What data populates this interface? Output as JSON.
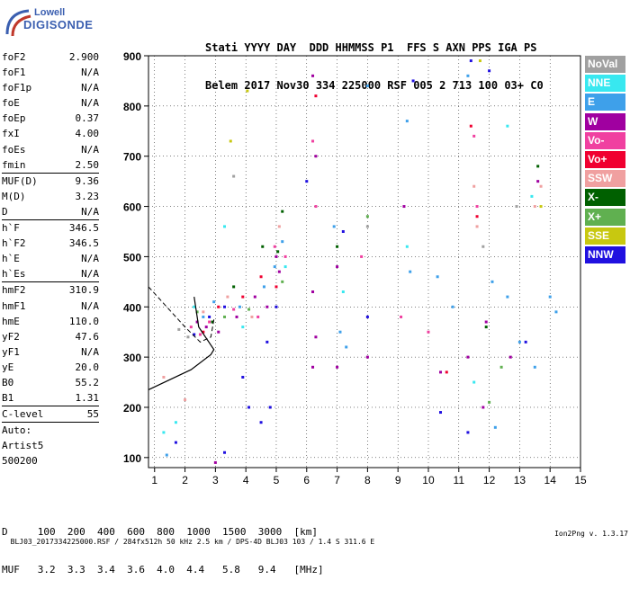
{
  "logo": {
    "line1": "Lowell",
    "line2": "DIGISONDE"
  },
  "header": {
    "line1": "Stati YYYY DAY  DDD HHMMSS P1  FFS S AXN PPS IGA PS",
    "line2": "Belem 2017 Nov30 334 225000 RSF 005 2 713 100 03+ C0"
  },
  "params": [
    {
      "label": "foF2",
      "value": "2.900",
      "sep": false
    },
    {
      "label": "foF1",
      "value": "N/A",
      "sep": false
    },
    {
      "label": "foF1p",
      "value": "N/A",
      "sep": false
    },
    {
      "label": "foE",
      "value": "N/A",
      "sep": false
    },
    {
      "label": "foEp",
      "value": "0.37",
      "sep": false
    },
    {
      "label": "fxI",
      "value": "4.00",
      "sep": false
    },
    {
      "label": "foEs",
      "value": "N/A",
      "sep": false
    },
    {
      "label": "fmin",
      "value": "2.50",
      "sep": true
    },
    {
      "label": "MUF(D)",
      "value": "9.36",
      "sep": false
    },
    {
      "label": "M(D)",
      "value": "3.23",
      "sep": false
    },
    {
      "label": "D",
      "value": "N/A",
      "sep": true
    },
    {
      "label": "h`F",
      "value": "346.5",
      "sep": false
    },
    {
      "label": "h`F2",
      "value": "346.5",
      "sep": false
    },
    {
      "label": "h`E",
      "value": "N/A",
      "sep": false
    },
    {
      "label": "h`Es",
      "value": "N/A",
      "sep": true
    },
    {
      "label": "hmF2",
      "value": "310.9",
      "sep": false
    },
    {
      "label": "hmF1",
      "value": "N/A",
      "sep": false
    },
    {
      "label": "hmE",
      "value": "110.0",
      "sep": false
    },
    {
      "label": "yF2",
      "value": "47.6",
      "sep": false
    },
    {
      "label": "yF1",
      "value": "N/A",
      "sep": false
    },
    {
      "label": "yE",
      "value": "20.0",
      "sep": false
    },
    {
      "label": "B0",
      "value": "55.2",
      "sep": false
    },
    {
      "label": "B1",
      "value": "1.31",
      "sep": true
    },
    {
      "label": "C-level",
      "value": "55",
      "sep": true
    },
    {
      "label": "Auto:",
      "value": "",
      "sep": false
    },
    {
      "label": "Artist5",
      "value": "",
      "sep": false
    },
    {
      "label": "500200",
      "value": "",
      "sep": false
    }
  ],
  "legend": [
    {
      "label": "NoVal",
      "color": "#a0a0a0"
    },
    {
      "label": "NNE",
      "color": "#38e8f0"
    },
    {
      "label": "E",
      "color": "#3ea0ea"
    },
    {
      "label": "W",
      "color": "#a000a0"
    },
    {
      "label": "Vo-",
      "color": "#f040a0"
    },
    {
      "label": "Vo+",
      "color": "#f00030"
    },
    {
      "label": "SSW",
      "color": "#f0a0a0"
    },
    {
      "label": "X-",
      "color": "#006000"
    },
    {
      "label": "X+",
      "color": "#60b050"
    },
    {
      "label": "SSE",
      "color": "#c8c810"
    },
    {
      "label": "NNW",
      "color": "#2010e0"
    }
  ],
  "bottom_table": {
    "row1": "D     100  200  400  600  800  1000  1500  3000  [km]",
    "row2": "MUF   3.2  3.3  3.4  3.6  4.0  4.4   5.8   9.4   [MHz]"
  },
  "footer": {
    "left": "BLJ03_2017334225000.RSF / 284fx512h 50 kHz 2.5 km / DPS-4D BLJ03 103 / 1.4 S 311.6 E",
    "right": "Ion2Png v. 1.3.17"
  },
  "chart_data": {
    "type": "scatter",
    "title": "",
    "xlabel": "",
    "ylabel": "",
    "xlim": [
      0.8,
      15
    ],
    "ylim": [
      80,
      900
    ],
    "xticks": [
      1,
      2,
      3,
      4,
      5,
      6,
      7,
      8,
      9,
      10,
      11,
      12,
      13,
      14,
      15
    ],
    "yticks": [
      100,
      200,
      300,
      400,
      500,
      600,
      700,
      800,
      900
    ],
    "grid": true,
    "series": [
      {
        "name": "NoVal",
        "color": "#a0a0a0",
        "points": [
          [
            1.8,
            355
          ],
          [
            2.1,
            340
          ],
          [
            3.6,
            660
          ],
          [
            8.0,
            560
          ],
          [
            11.8,
            520
          ],
          [
            12.9,
            600
          ]
        ]
      },
      {
        "name": "NNE",
        "color": "#38e8f0",
        "points": [
          [
            1.3,
            150
          ],
          [
            1.7,
            170
          ],
          [
            2.3,
            400
          ],
          [
            3.3,
            560
          ],
          [
            3.9,
            360
          ],
          [
            5.3,
            480
          ],
          [
            7.2,
            430
          ],
          [
            9.3,
            520
          ],
          [
            11.5,
            250
          ],
          [
            12.6,
            760
          ],
          [
            13.4,
            620
          ]
        ]
      },
      {
        "name": "E",
        "color": "#3ea0ea",
        "points": [
          [
            2.6,
            380
          ],
          [
            2.95,
            410
          ],
          [
            3.8,
            400
          ],
          [
            4.6,
            440
          ],
          [
            4.95,
            480
          ],
          [
            5.2,
            530
          ],
          [
            6.9,
            560
          ],
          [
            7.1,
            350
          ],
          [
            7.3,
            320
          ],
          [
            8.0,
            840
          ],
          [
            9.3,
            770
          ],
          [
            9.4,
            470
          ],
          [
            10.3,
            460
          ],
          [
            10.8,
            400
          ],
          [
            11.3,
            860
          ],
          [
            12.1,
            450
          ],
          [
            12.6,
            420
          ],
          [
            13.0,
            330
          ],
          [
            13.5,
            280
          ],
          [
            14.0,
            420
          ],
          [
            14.2,
            390
          ],
          [
            1.4,
            105
          ],
          [
            12.2,
            160
          ]
        ]
      },
      {
        "name": "W",
        "color": "#a000a0",
        "points": [
          [
            2.4,
            370
          ],
          [
            2.7,
            360
          ],
          [
            3.1,
            350
          ],
          [
            3.7,
            380
          ],
          [
            4.3,
            420
          ],
          [
            4.7,
            400
          ],
          [
            5.0,
            500
          ],
          [
            5.1,
            470
          ],
          [
            6.2,
            430
          ],
          [
            6.3,
            340
          ],
          [
            6.2,
            280
          ],
          [
            6.3,
            700
          ],
          [
            6.2,
            860
          ],
          [
            7.0,
            480
          ],
          [
            7.0,
            280
          ],
          [
            8.0,
            300
          ],
          [
            9.2,
            600
          ],
          [
            10.4,
            270
          ],
          [
            11.3,
            300
          ],
          [
            11.8,
            200
          ],
          [
            11.9,
            370
          ],
          [
            12.7,
            300
          ],
          [
            13.6,
            650
          ],
          [
            3.0,
            90
          ]
        ]
      },
      {
        "name": "Vo-",
        "color": "#f040a0",
        "points": [
          [
            2.2,
            360
          ],
          [
            2.5,
            345
          ],
          [
            2.8,
            370
          ],
          [
            3.6,
            395
          ],
          [
            4.4,
            380
          ],
          [
            4.95,
            520
          ],
          [
            5.3,
            500
          ],
          [
            6.2,
            730
          ],
          [
            6.3,
            600
          ],
          [
            7.8,
            500
          ],
          [
            9.1,
            380
          ],
          [
            10.0,
            350
          ],
          [
            11.5,
            740
          ],
          [
            11.6,
            600
          ]
        ]
      },
      {
        "name": "Vo+",
        "color": "#f00030",
        "points": [
          [
            2.6,
            350
          ],
          [
            3.1,
            400
          ],
          [
            3.9,
            420
          ],
          [
            4.5,
            460
          ],
          [
            5.0,
            440
          ],
          [
            6.3,
            820
          ],
          [
            10.6,
            270
          ],
          [
            11.4,
            760
          ],
          [
            11.6,
            580
          ]
        ]
      },
      {
        "name": "SSW",
        "color": "#f0a0a0",
        "points": [
          [
            1.3,
            260
          ],
          [
            2.0,
            215
          ],
          [
            2.6,
            390
          ],
          [
            3.4,
            420
          ],
          [
            4.2,
            380
          ],
          [
            5.1,
            560
          ],
          [
            11.5,
            640
          ],
          [
            11.6,
            560
          ],
          [
            13.5,
            600
          ],
          [
            13.7,
            640
          ]
        ]
      },
      {
        "name": "X-",
        "color": "#006000",
        "points": [
          [
            2.9,
            370
          ],
          [
            3.6,
            440
          ],
          [
            4.55,
            520
          ],
          [
            5.05,
            510
          ],
          [
            5.2,
            590
          ],
          [
            7.0,
            520
          ],
          [
            11.9,
            360
          ],
          [
            13.6,
            680
          ]
        ]
      },
      {
        "name": "X+",
        "color": "#60b050",
        "points": [
          [
            2.4,
            390
          ],
          [
            3.3,
            380
          ],
          [
            4.1,
            395
          ],
          [
            5.2,
            450
          ],
          [
            8.0,
            580
          ],
          [
            12.0,
            210
          ],
          [
            12.4,
            280
          ]
        ]
      },
      {
        "name": "SSE",
        "color": "#c8c810",
        "points": [
          [
            3.5,
            730
          ],
          [
            4.05,
            830
          ],
          [
            11.7,
            890
          ],
          [
            13.7,
            600
          ]
        ]
      },
      {
        "name": "NNW",
        "color": "#2010e0",
        "points": [
          [
            2.3,
            345
          ],
          [
            2.8,
            380
          ],
          [
            3.3,
            400
          ],
          [
            3.9,
            260
          ],
          [
            4.1,
            200
          ],
          [
            4.5,
            170
          ],
          [
            4.7,
            330
          ],
          [
            5.0,
            400
          ],
          [
            4.8,
            200
          ],
          [
            6.0,
            650
          ],
          [
            7.2,
            550
          ],
          [
            8.0,
            380
          ],
          [
            9.5,
            850
          ],
          [
            10.4,
            190
          ],
          [
            11.3,
            150
          ],
          [
            11.4,
            890
          ],
          [
            12.0,
            870
          ],
          [
            13.2,
            330
          ],
          [
            3.3,
            110
          ],
          [
            1.7,
            130
          ]
        ]
      }
    ]
  }
}
